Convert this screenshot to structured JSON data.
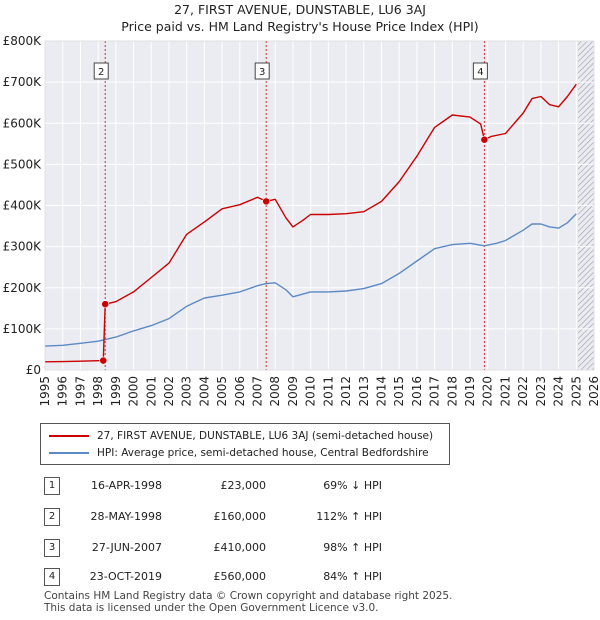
{
  "chart_data": {
    "type": "line",
    "title": "27, FIRST AVENUE, DUNSTABLE, LU6 3AJ",
    "subtitle": "Price paid vs. HM Land Registry's House Price Index (HPI)",
    "xlim": [
      1995,
      2026
    ],
    "ylim": [
      0,
      800000
    ],
    "x_ticks": [
      "1995",
      "1996",
      "1997",
      "1998",
      "1999",
      "2000",
      "2001",
      "2002",
      "2003",
      "2004",
      "2005",
      "2006",
      "2007",
      "2008",
      "2009",
      "2010",
      "2011",
      "2012",
      "2013",
      "2014",
      "2015",
      "2016",
      "2017",
      "2018",
      "2019",
      "2020",
      "2021",
      "2022",
      "2023",
      "2024",
      "2025",
      "2026"
    ],
    "y_ticks": [
      {
        "value": 0,
        "label": "£0"
      },
      {
        "value": 100000,
        "label": "£100K"
      },
      {
        "value": 200000,
        "label": "£200K"
      },
      {
        "value": 300000,
        "label": "£300K"
      },
      {
        "value": 400000,
        "label": "£400K"
      },
      {
        "value": 500000,
        "label": "£500K"
      },
      {
        "value": 600000,
        "label": "£600K"
      },
      {
        "value": 700000,
        "label": "£700K"
      },
      {
        "value": 800000,
        "label": "£800K"
      }
    ],
    "projection_start": 2025.1,
    "series": [
      {
        "name": "27, FIRST AVENUE, DUNSTABLE, LU6 3AJ (semi-detached house)",
        "color": "#cc0000",
        "points": [
          [
            1995.0,
            20000
          ],
          [
            1996.0,
            20500
          ],
          [
            1997.0,
            21500
          ],
          [
            1998.0,
            22500
          ],
          [
            1998.29,
            23000
          ],
          [
            1998.4,
            160000
          ],
          [
            1999.0,
            166000
          ],
          [
            2000.0,
            190000
          ],
          [
            2001.0,
            225000
          ],
          [
            2002.0,
            260000
          ],
          [
            2003.0,
            330000
          ],
          [
            2004.0,
            360000
          ],
          [
            2005.0,
            392000
          ],
          [
            2006.0,
            402000
          ],
          [
            2007.0,
            420000
          ],
          [
            2007.49,
            410000
          ],
          [
            2008.0,
            415000
          ],
          [
            2008.6,
            370000
          ],
          [
            2009.0,
            348000
          ],
          [
            2009.5,
            362000
          ],
          [
            2010.0,
            378000
          ],
          [
            2011.0,
            378000
          ],
          [
            2012.0,
            380000
          ],
          [
            2013.0,
            385000
          ],
          [
            2014.0,
            410000
          ],
          [
            2015.0,
            458000
          ],
          [
            2016.0,
            520000
          ],
          [
            2017.0,
            590000
          ],
          [
            2018.0,
            620000
          ],
          [
            2019.0,
            615000
          ],
          [
            2019.6,
            598000
          ],
          [
            2019.81,
            560000
          ],
          [
            2020.2,
            568000
          ],
          [
            2021.0,
            575000
          ],
          [
            2022.0,
            625000
          ],
          [
            2022.5,
            660000
          ],
          [
            2023.0,
            665000
          ],
          [
            2023.5,
            645000
          ],
          [
            2024.0,
            640000
          ],
          [
            2024.5,
            665000
          ],
          [
            2025.0,
            695000
          ]
        ]
      },
      {
        "name": "HPI: Average price, semi-detached house, Central Bedfordshire",
        "color": "#5b8ac5",
        "points": [
          [
            1995.0,
            58000
          ],
          [
            1996.0,
            60000
          ],
          [
            1997.0,
            65000
          ],
          [
            1998.0,
            70000
          ],
          [
            1999.0,
            80000
          ],
          [
            2000.0,
            95000
          ],
          [
            2001.0,
            108000
          ],
          [
            2002.0,
            125000
          ],
          [
            2003.0,
            155000
          ],
          [
            2004.0,
            175000
          ],
          [
            2005.0,
            182000
          ],
          [
            2006.0,
            190000
          ],
          [
            2007.0,
            205000
          ],
          [
            2007.5,
            210000
          ],
          [
            2008.0,
            212000
          ],
          [
            2008.6,
            195000
          ],
          [
            2009.0,
            178000
          ],
          [
            2010.0,
            190000
          ],
          [
            2011.0,
            190000
          ],
          [
            2012.0,
            192000
          ],
          [
            2013.0,
            198000
          ],
          [
            2014.0,
            210000
          ],
          [
            2015.0,
            235000
          ],
          [
            2016.0,
            265000
          ],
          [
            2017.0,
            295000
          ],
          [
            2018.0,
            305000
          ],
          [
            2019.0,
            308000
          ],
          [
            2019.81,
            302000
          ],
          [
            2020.5,
            308000
          ],
          [
            2021.0,
            315000
          ],
          [
            2022.0,
            340000
          ],
          [
            2022.5,
            355000
          ],
          [
            2023.0,
            355000
          ],
          [
            2023.5,
            348000
          ],
          [
            2024.0,
            345000
          ],
          [
            2024.5,
            358000
          ],
          [
            2025.0,
            380000
          ]
        ]
      }
    ],
    "sales": [
      {
        "id": "1",
        "x": 1998.29,
        "value": 23000,
        "date": "16-APR-1998",
        "price": "£23,000",
        "hpi": "69% ↓ HPI"
      },
      {
        "id": "2",
        "x": 1998.4,
        "value": 160000,
        "date": "28-MAY-1998",
        "price": "£160,000",
        "hpi": "112% ↑ HPI"
      },
      {
        "id": "3",
        "x": 2007.49,
        "value": 410000,
        "date": "27-JUN-2007",
        "price": "£410,000",
        "hpi": "98% ↑ HPI"
      },
      {
        "id": "4",
        "x": 2019.81,
        "value": 560000,
        "date": "23-OCT-2019",
        "price": "£560,000",
        "hpi": "84% ↑ HPI"
      }
    ],
    "marker_boxes": [
      "2",
      "3",
      "4"
    ]
  },
  "legend": {
    "property": "27, FIRST AVENUE, DUNSTABLE, LU6 3AJ (semi-detached house)",
    "hpi": "HPI: Average price, semi-detached house, Central Bedfordshire"
  },
  "colors": {
    "property": "#cc0000",
    "hpi": "#5b8ac5",
    "grid": "#dddddd",
    "plot_bg": "#ebebf2"
  },
  "sales_table": [
    {
      "num": "1",
      "date": "16-APR-1998",
      "price": "£23,000",
      "hpi": "69% ↓ HPI"
    },
    {
      "num": "2",
      "date": "28-MAY-1998",
      "price": "£160,000",
      "hpi": "112% ↑ HPI"
    },
    {
      "num": "3",
      "date": "27-JUN-2007",
      "price": "£410,000",
      "hpi": "98% ↑ HPI"
    },
    {
      "num": "4",
      "date": "23-OCT-2019",
      "price": "£560,000",
      "hpi": "84% ↑ HPI"
    }
  ],
  "footer": {
    "line1": "Contains HM Land Registry data © Crown copyright and database right 2025.",
    "line2": "This data is licensed under the Open Government Licence v3.0."
  }
}
